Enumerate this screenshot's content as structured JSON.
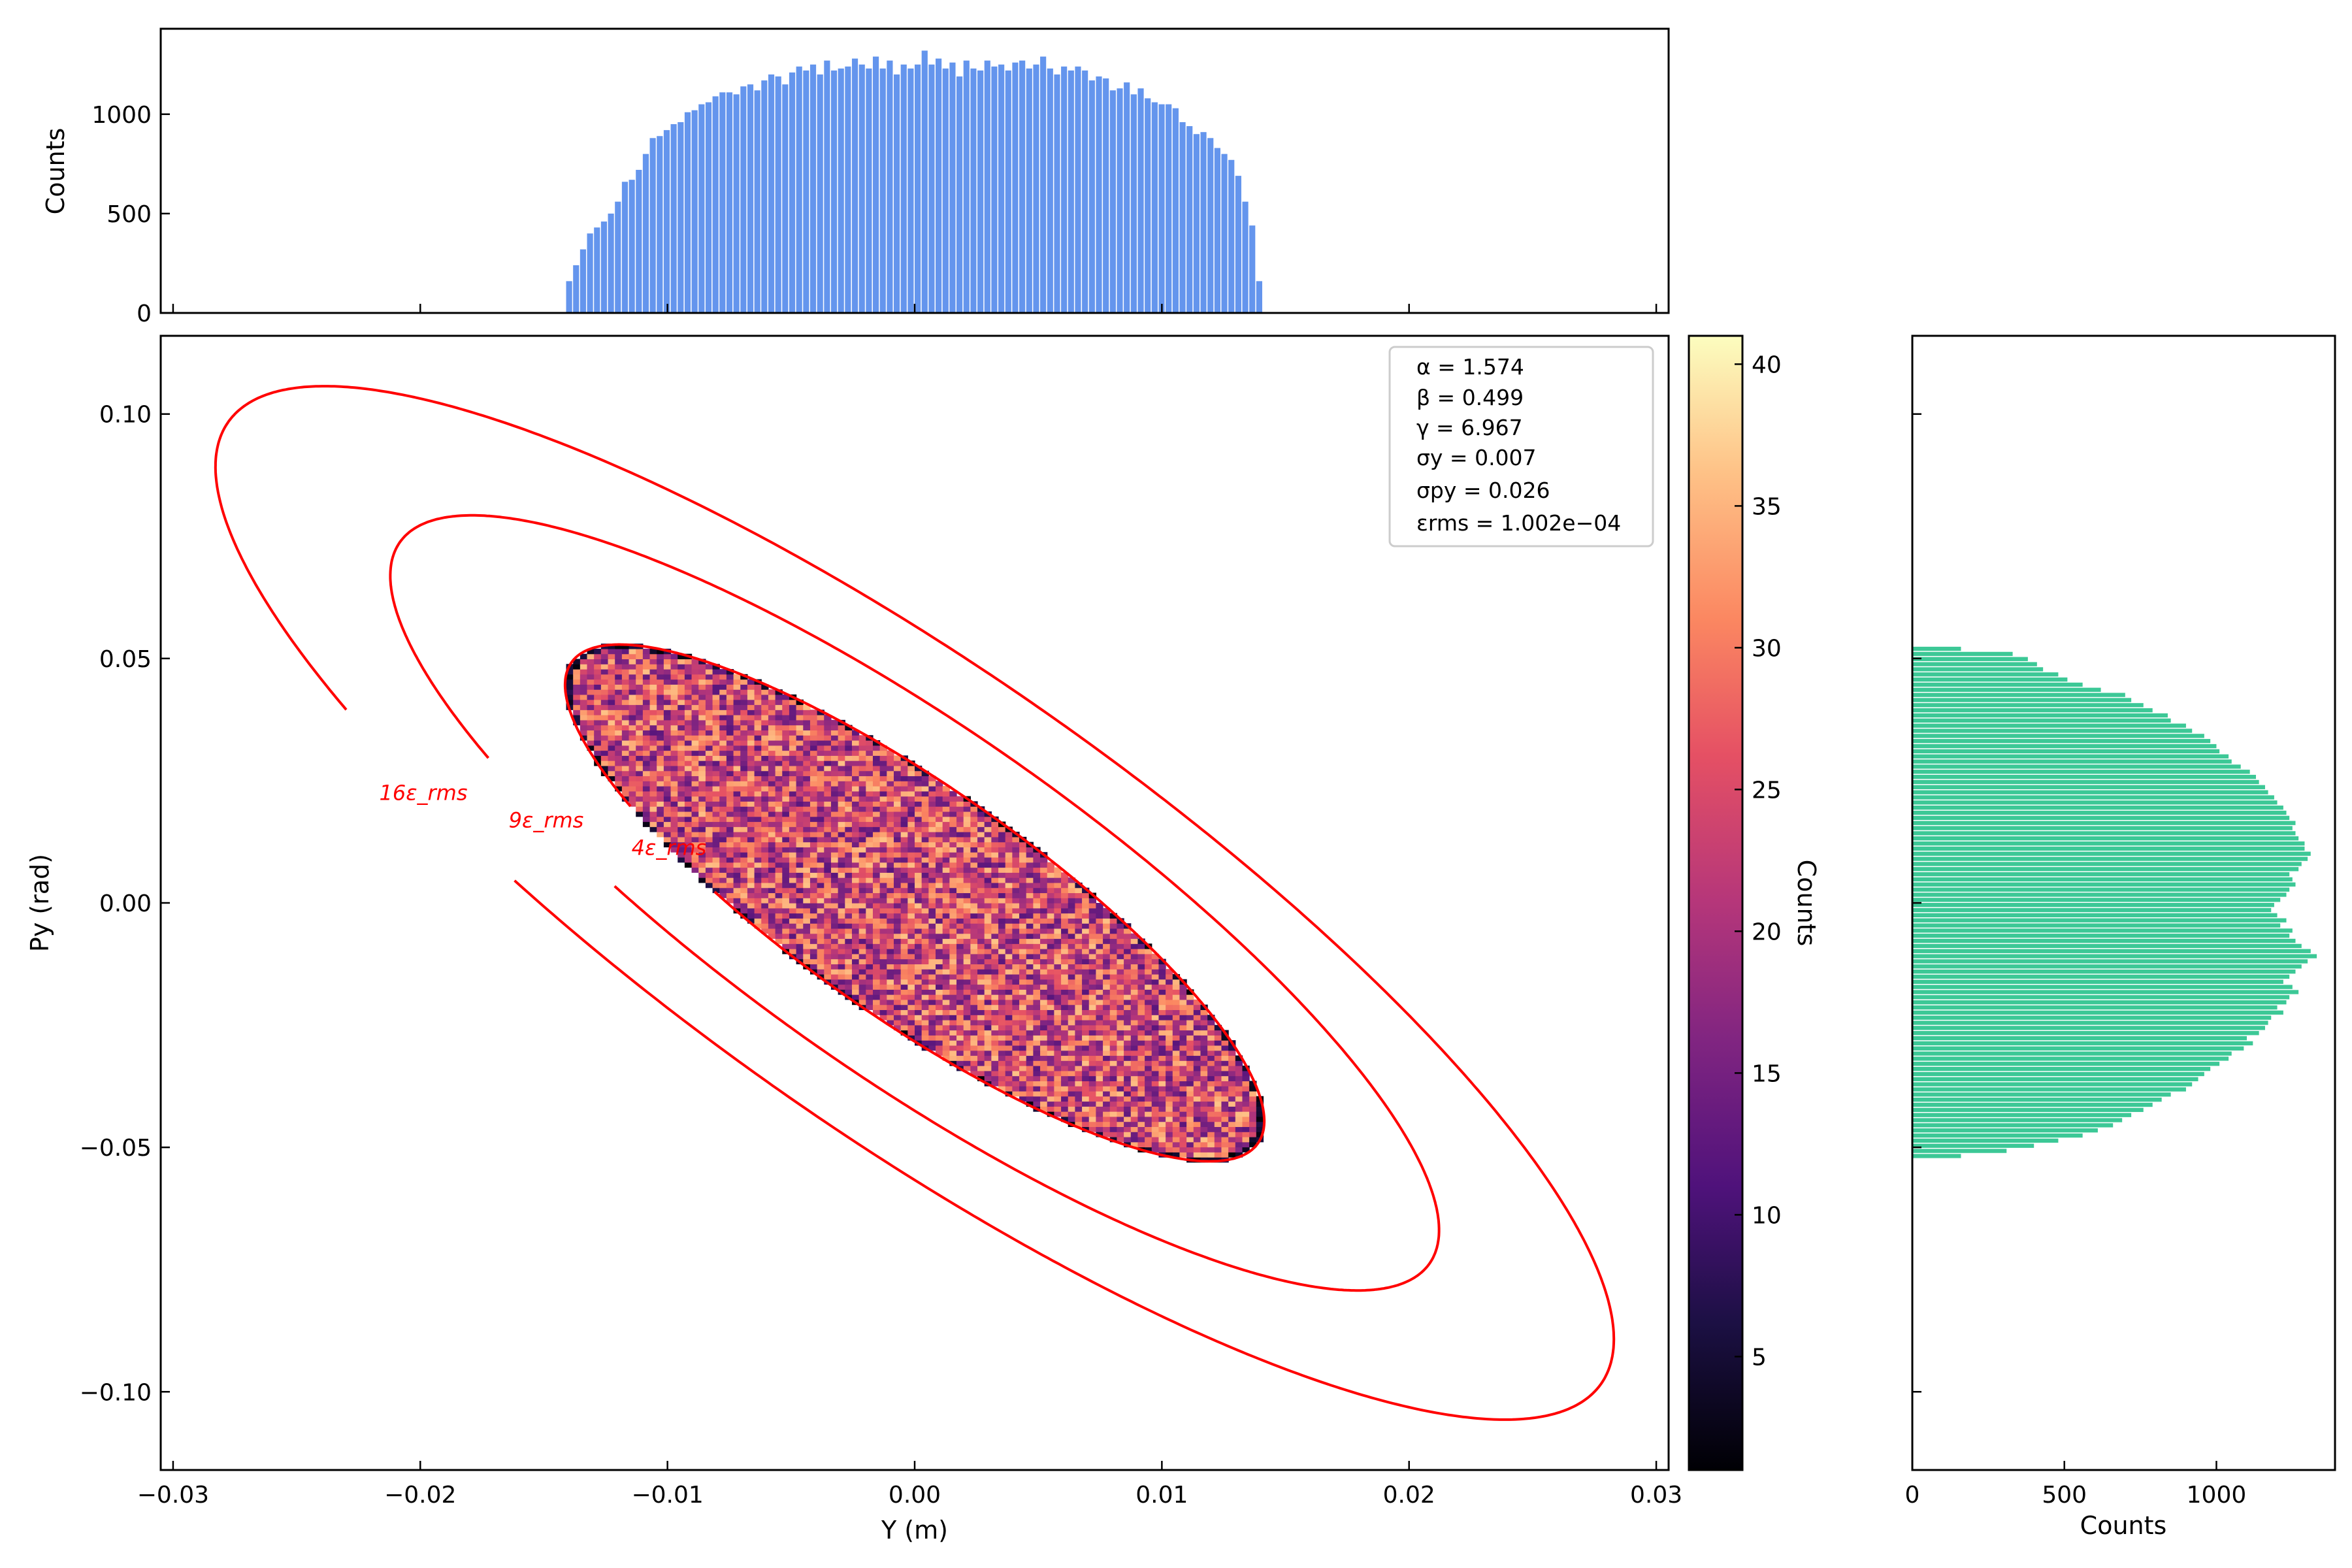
{
  "chart_data": [
    {
      "id": "phase_space",
      "type": "heatmap",
      "xlabel": "Y (m)",
      "ylabel": "Py (rad)",
      "xlim": [
        -0.0305,
        0.0305
      ],
      "ylim": [
        -0.116,
        0.116
      ],
      "xticks": [
        -0.03,
        -0.02,
        -0.01,
        0.0,
        0.01,
        0.02,
        0.03
      ],
      "xtick_labels": [
        "−0.03",
        "−0.02",
        "−0.01",
        "0.00",
        "0.01",
        "0.02",
        "0.03"
      ],
      "yticks": [
        -0.1,
        -0.05,
        0.0,
        0.05,
        0.1
      ],
      "ytick_labels": [
        "−0.10",
        "−0.05",
        "0.00",
        "0.05",
        "0.10"
      ],
      "twiss": {
        "alpha": 1.574,
        "beta": 0.499,
        "gamma": 6.967,
        "emittance": 0.0001002
      },
      "heat_cell_size": {
        "y": 0.000282,
        "py": 0.00104
      },
      "count_range": [
        1,
        41
      ],
      "colormap": "magma",
      "contours": [
        {
          "multiple": 4,
          "label": "4ε_rms",
          "color": "#ff0000"
        },
        {
          "multiple": 9,
          "label": "9ε_rms",
          "color": "#ff0000"
        },
        {
          "multiple": 16,
          "label": "16ε_rms",
          "color": "#ff0000"
        }
      ],
      "annotation": [
        "α = 1.574",
        "β = 0.499",
        "γ = 6.967",
        "σy = 0.007",
        "σpy = 0.026",
        "εrms = 1.002e−04"
      ]
    },
    {
      "id": "y_histogram",
      "type": "bar",
      "orientation": "vertical",
      "ylabel": "Counts",
      "ylim": [
        0,
        1430
      ],
      "yticks": [
        0,
        500,
        1000
      ],
      "ytick_labels": [
        "0",
        "500",
        "1000"
      ],
      "bin_range": [
        -0.0141,
        0.0141
      ],
      "bin_count": 100,
      "values": [
        160,
        240,
        320,
        400,
        430,
        460,
        500,
        560,
        660,
        670,
        720,
        800,
        880,
        890,
        920,
        950,
        960,
        1010,
        1020,
        1050,
        1060,
        1090,
        1110,
        1110,
        1100,
        1140,
        1150,
        1120,
        1170,
        1200,
        1190,
        1150,
        1210,
        1240,
        1220,
        1250,
        1200,
        1270,
        1220,
        1230,
        1240,
        1280,
        1250,
        1230,
        1290,
        1230,
        1270,
        1200,
        1250,
        1230,
        1250,
        1320,
        1250,
        1280,
        1230,
        1260,
        1190,
        1270,
        1230,
        1220,
        1270,
        1240,
        1250,
        1220,
        1260,
        1270,
        1230,
        1250,
        1290,
        1230,
        1200,
        1240,
        1220,
        1240,
        1220,
        1170,
        1190,
        1180,
        1120,
        1130,
        1160,
        1100,
        1130,
        1080,
        1060,
        1050,
        1050,
        1030,
        960,
        940,
        900,
        910,
        880,
        830,
        800,
        770,
        690,
        560,
        440,
        160
      ]
    },
    {
      "id": "py_histogram",
      "type": "bar",
      "orientation": "horizontal",
      "xlabel": "Counts",
      "xlim": [
        0,
        1390
      ],
      "xticks": [
        0,
        500,
        1000
      ],
      "xtick_labels": [
        "0",
        "500",
        "1000"
      ],
      "bin_range": [
        -0.0524,
        0.0524
      ],
      "bin_count": 100,
      "values": [
        160,
        330,
        380,
        410,
        430,
        480,
        510,
        560,
        620,
        700,
        720,
        760,
        790,
        840,
        850,
        900,
        920,
        960,
        980,
        1000,
        1010,
        1040,
        1050,
        1080,
        1110,
        1130,
        1140,
        1160,
        1170,
        1190,
        1200,
        1220,
        1230,
        1240,
        1260,
        1250,
        1260,
        1270,
        1290,
        1290,
        1310,
        1300,
        1280,
        1270,
        1240,
        1250,
        1260,
        1240,
        1230,
        1210,
        1190,
        1180,
        1200,
        1230,
        1210,
        1250,
        1240,
        1260,
        1280,
        1310,
        1330,
        1300,
        1280,
        1260,
        1240,
        1220,
        1250,
        1270,
        1240,
        1230,
        1200,
        1220,
        1180,
        1170,
        1160,
        1140,
        1100,
        1120,
        1090,
        1050,
        1040,
        1010,
        980,
        960,
        940,
        920,
        900,
        850,
        820,
        790,
        760,
        720,
        690,
        660,
        610,
        560,
        480,
        400,
        310,
        160
      ]
    },
    {
      "id": "colorbar",
      "type": "colorbar",
      "ylabel": "Counts",
      "range": [
        1,
        41
      ],
      "ticks": [
        5,
        10,
        15,
        20,
        25,
        30,
        35,
        40
      ],
      "tick_labels": [
        "5",
        "10",
        "15",
        "20",
        "25",
        "30",
        "35",
        "40"
      ]
    }
  ]
}
